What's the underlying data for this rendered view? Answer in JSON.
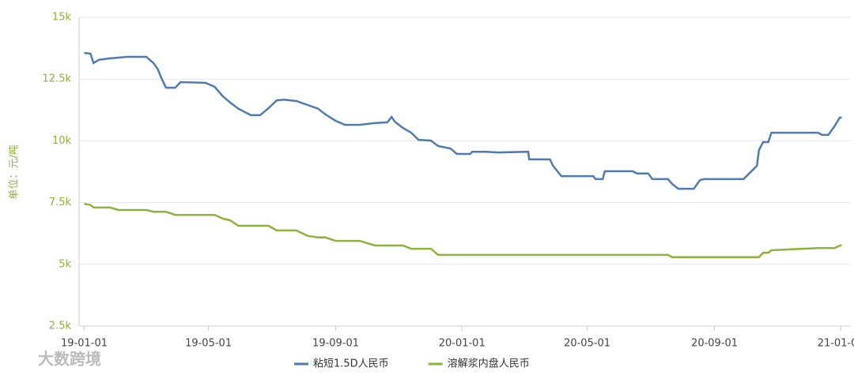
{
  "chart_data": {
    "type": "line",
    "y_axis_label": "单位：元/吨",
    "watermark": "大数跨境",
    "x": [
      "19-01-01",
      "19-01-07",
      "19-01-10",
      "19-01-15",
      "19-01-26",
      "19-02-03",
      "19-02-11",
      "19-03-02",
      "19-03-09",
      "19-03-13",
      "19-03-17",
      "19-03-21",
      "19-03-30",
      "19-04-04",
      "19-04-28",
      "19-05-07",
      "19-05-15",
      "19-05-22",
      "19-05-30",
      "19-06-11",
      "19-06-20",
      "19-06-28",
      "19-07-06",
      "19-07-13",
      "19-07-25",
      "19-08-05",
      "19-08-15",
      "19-08-22",
      "19-09-01",
      "19-09-10",
      "19-09-24",
      "19-10-09",
      "19-10-21",
      "19-10-25",
      "19-10-28",
      "19-11-05",
      "19-11-13",
      "19-11-20",
      "19-12-02",
      "19-12-09",
      "19-12-21",
      "19-12-27",
      "20-01-09",
      "20-01-11",
      "20-01-24",
      "20-02-05",
      "20-03-05",
      "20-03-06",
      "20-03-26",
      "20-03-29",
      "20-04-06",
      "20-05-07",
      "20-05-09",
      "20-05-16",
      "20-05-18",
      "20-06-14",
      "20-06-18",
      "20-06-29",
      "20-07-03",
      "20-07-18",
      "20-07-22",
      "20-07-28",
      "20-08-12",
      "20-08-18",
      "20-08-22",
      "20-09-29",
      "20-10-06",
      "20-10-12",
      "20-10-14",
      "20-10-18",
      "20-10-23",
      "20-10-26",
      "20-12-10",
      "20-12-14",
      "20-12-20",
      "20-12-26",
      "20-12-31",
      "21-01-02"
    ],
    "series": [
      {
        "name": "粘短1.5D人民币",
        "color": "#4e7ab5",
        "values": [
          13560,
          13530,
          13150,
          13280,
          13340,
          13370,
          13400,
          13400,
          13150,
          12900,
          12500,
          12150,
          12150,
          12380,
          12350,
          12190,
          11800,
          11550,
          11300,
          11040,
          11040,
          11320,
          11640,
          11670,
          11610,
          11450,
          11300,
          11070,
          10810,
          10650,
          10650,
          10720,
          10750,
          10970,
          10780,
          10520,
          10330,
          10040,
          10010,
          9790,
          9690,
          9470,
          9470,
          9560,
          9560,
          9530,
          9560,
          9250,
          9250,
          8990,
          8570,
          8570,
          8450,
          8450,
          8770,
          8770,
          8680,
          8680,
          8450,
          8450,
          8260,
          8060,
          8060,
          8410,
          8450,
          8450,
          8740,
          8990,
          9630,
          9950,
          9950,
          10330,
          10330,
          10240,
          10240,
          10590,
          10940,
          10940
        ]
      },
      {
        "name": "溶解浆内盘人民币",
        "color": "#8db33a",
        "values": [
          7450,
          7400,
          7300,
          7300,
          7300,
          7200,
          7200,
          7200,
          7130,
          7130,
          7130,
          7130,
          7000,
          7000,
          7000,
          7000,
          6850,
          6780,
          6560,
          6560,
          6560,
          6560,
          6370,
          6370,
          6370,
          6150,
          6090,
          6090,
          5950,
          5950,
          5950,
          5760,
          5760,
          5760,
          5760,
          5760,
          5630,
          5630,
          5630,
          5380,
          5380,
          5380,
          5380,
          5380,
          5380,
          5380,
          5380,
          5380,
          5380,
          5380,
          5380,
          5380,
          5380,
          5380,
          5380,
          5380,
          5380,
          5380,
          5380,
          5380,
          5290,
          5290,
          5290,
          5290,
          5290,
          5290,
          5290,
          5290,
          5290,
          5470,
          5470,
          5570,
          5660,
          5660,
          5660,
          5660,
          5760,
          5760
        ]
      }
    ],
    "xlim": [
      "18-12-27",
      "21-01-10"
    ],
    "xticks": [
      "19-01-01",
      "19-05-01",
      "19-09-01",
      "20-01-01",
      "20-05-01",
      "20-09-01",
      "21-01-01"
    ],
    "ylim": [
      2500,
      15000
    ],
    "yticks": [
      {
        "value": 2500,
        "label": "2.5k"
      },
      {
        "value": 5000,
        "label": "5k"
      },
      {
        "value": 7500,
        "label": "7.5k"
      },
      {
        "value": 10000,
        "label": "10k"
      },
      {
        "value": 12500,
        "label": "12.5k"
      },
      {
        "value": 15000,
        "label": "15k"
      }
    ],
    "grid": true,
    "legend": "bottom"
  }
}
